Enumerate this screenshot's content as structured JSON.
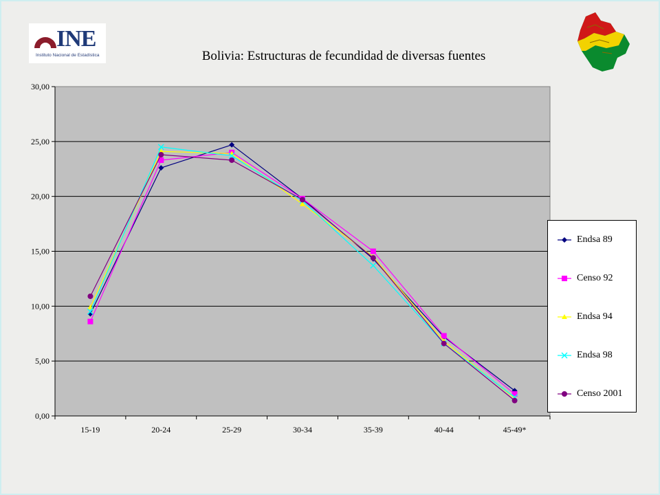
{
  "logo": {
    "ine_text": "INE",
    "ine_subtitle": "Instituto Nacional de Estadística"
  },
  "chart_data": {
    "type": "line",
    "title": "Bolivia: Estructuras de fecundidad de diversas fuentes",
    "xlabel": "",
    "ylabel": "",
    "categories": [
      "15-19",
      "20-24",
      "25-29",
      "30-34",
      "35-39",
      "40-44",
      "45-49*"
    ],
    "ylim": [
      0,
      30
    ],
    "yticks": [
      "0,00",
      "5,00",
      "10,00",
      "15,00",
      "20,00",
      "25,00",
      "30,00"
    ],
    "grid": true,
    "legend_position": "right",
    "plot_background": "#c0c0c0",
    "series": [
      {
        "name": "Endsa 89",
        "color": "#000080",
        "marker": "diamond",
        "values": [
          9.3,
          22.6,
          24.7,
          19.8,
          14.3,
          7.2,
          2.3
        ]
      },
      {
        "name": "Censo 92",
        "color": "#ff00ff",
        "marker": "square",
        "values": [
          8.6,
          23.3,
          24.0,
          19.8,
          15.0,
          7.3,
          2.0
        ]
      },
      {
        "name": "Endsa 94",
        "color": "#ffff00",
        "marker": "triangle",
        "values": [
          9.9,
          24.1,
          23.9,
          19.3,
          14.5,
          6.8,
          1.6
        ]
      },
      {
        "name": "Endsa 98",
        "color": "#00ffff",
        "marker": "x",
        "values": [
          9.5,
          24.5,
          23.7,
          19.6,
          13.7,
          6.6,
          1.7
        ]
      },
      {
        "name": "Censo 2001",
        "color": "#800080",
        "marker": "circle",
        "values": [
          10.9,
          23.8,
          23.3,
          19.7,
          14.4,
          6.6,
          1.4
        ]
      }
    ]
  }
}
